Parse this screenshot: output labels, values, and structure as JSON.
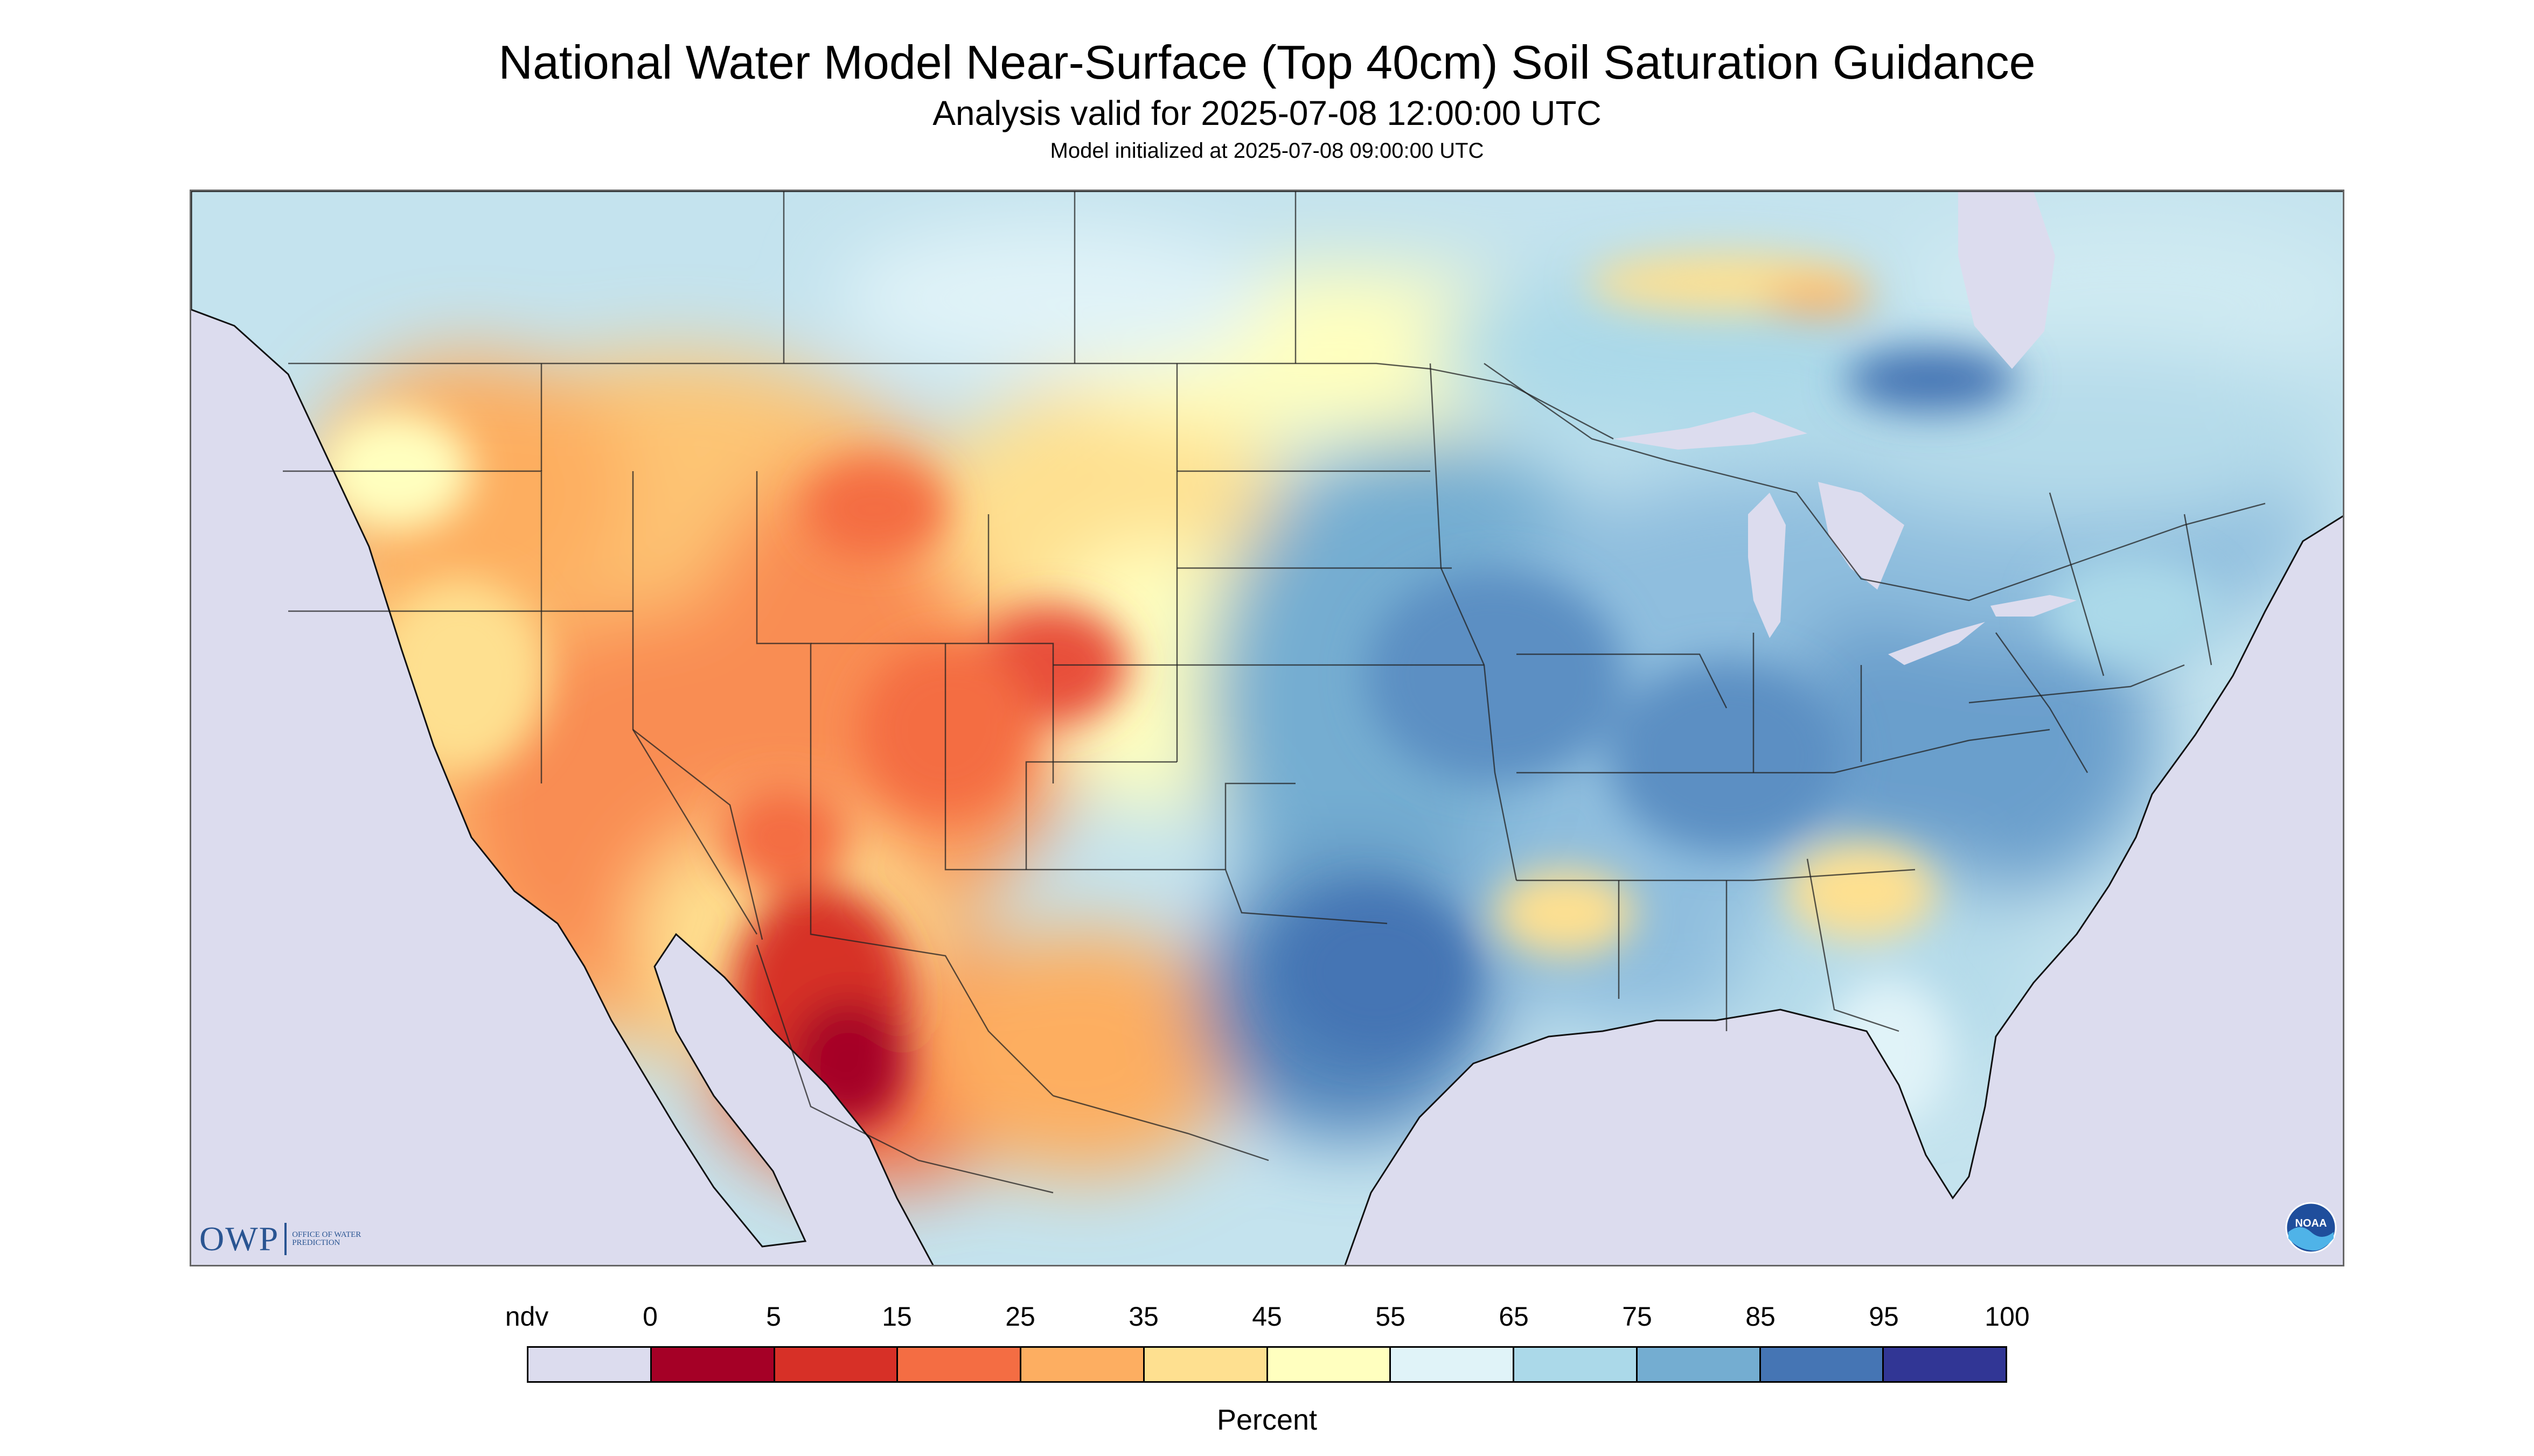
{
  "header": {
    "title": "National Water Model Near-Surface (Top 40cm) Soil Saturation Guidance",
    "subtitle": "Analysis valid for 2025-07-08 12:00:00 UTC",
    "init": "Model initialized at 2025-07-08 09:00:00 UTC"
  },
  "logos": {
    "owp_text": "OWP",
    "owp_subtext": "OFFICE OF WATER PREDICTION",
    "noaa_text": "NOAA"
  },
  "legend": {
    "units": "Percent",
    "labels": [
      "ndv",
      "0",
      "5",
      "15",
      "25",
      "35",
      "45",
      "55",
      "65",
      "75",
      "85",
      "95",
      "100"
    ],
    "colors": [
      "#dcdcee",
      "#a50026",
      "#d73027",
      "#f46d43",
      "#fdae61",
      "#fee090",
      "#ffffbf",
      "#e0f3f8",
      "#abd9e9",
      "#74add1",
      "#4575b4",
      "#313695"
    ]
  }
}
